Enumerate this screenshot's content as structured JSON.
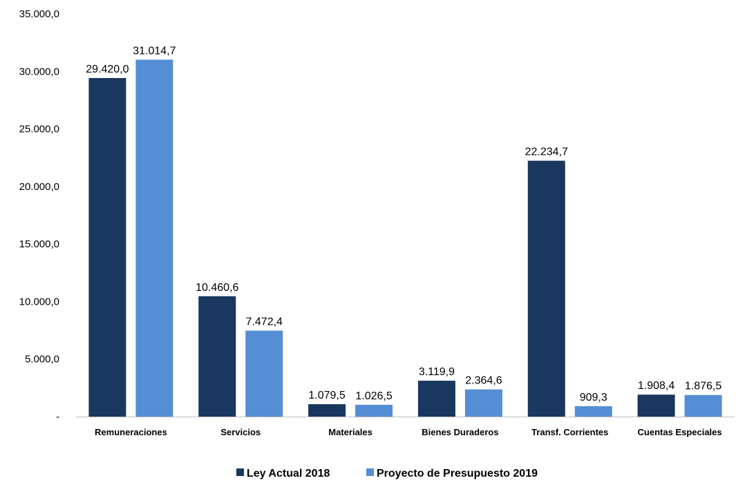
{
  "chart_data": {
    "type": "bar",
    "categories": [
      "Remuneraciones",
      "Servicios",
      "Materiales",
      "Bienes Duraderos",
      "Transf. Corrientes",
      "Cuentas Especiales"
    ],
    "series": [
      {
        "name": "Ley Actual 2018",
        "color": "#1a375f",
        "values": [
          29420.0,
          10460.6,
          1079.5,
          3119.9,
          22234.7,
          1908.4
        ],
        "labels": [
          "29.420,0",
          "10.460,6",
          "1.079,5",
          "3.119,9",
          "22.234,7",
          "1.908,4"
        ]
      },
      {
        "name": "Proyecto de Presupuesto 2019",
        "color": "#558ed5",
        "values": [
          31014.7,
          7472.4,
          1026.5,
          2364.6,
          909.3,
          1876.5
        ],
        "labels": [
          "31.014,7",
          "7.472,4",
          "1.026,5",
          "2.364,6",
          "909,3",
          "1.876,5"
        ]
      }
    ],
    "y_ticks": [
      {
        "value": 0,
        "label": "-"
      },
      {
        "value": 5000,
        "label": "5.000,0"
      },
      {
        "value": 10000,
        "label": "10.000,0"
      },
      {
        "value": 15000,
        "label": "15.000,0"
      },
      {
        "value": 20000,
        "label": "20.000,0"
      },
      {
        "value": 25000,
        "label": "25.000,0"
      },
      {
        "value": 30000,
        "label": "30.000,0"
      },
      {
        "value": 35000,
        "label": "35.000,0"
      }
    ],
    "ylim": [
      0,
      35000
    ],
    "grid": false,
    "legend_position": "bottom-center",
    "title": "",
    "xlabel": "",
    "ylabel": ""
  }
}
